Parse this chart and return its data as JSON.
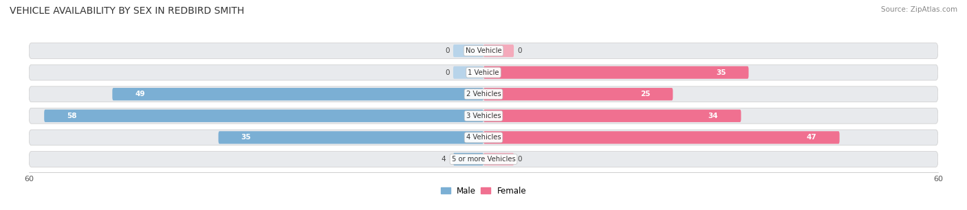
{
  "title": "VEHICLE AVAILABILITY BY SEX IN REDBIRD SMITH",
  "source": "Source: ZipAtlas.com",
  "categories": [
    "No Vehicle",
    "1 Vehicle",
    "2 Vehicles",
    "3 Vehicles",
    "4 Vehicles",
    "5 or more Vehicles"
  ],
  "male_values": [
    0,
    0,
    49,
    58,
    35,
    4
  ],
  "female_values": [
    0,
    35,
    25,
    34,
    47,
    0
  ],
  "male_color": "#7bafd4",
  "female_color": "#f07090",
  "male_color_light": "#b8d4ea",
  "female_color_light": "#f4aabb",
  "row_bg_color": "#e8e8e8",
  "xlim": 60,
  "title_fontsize": 10,
  "bar_height": 0.62
}
